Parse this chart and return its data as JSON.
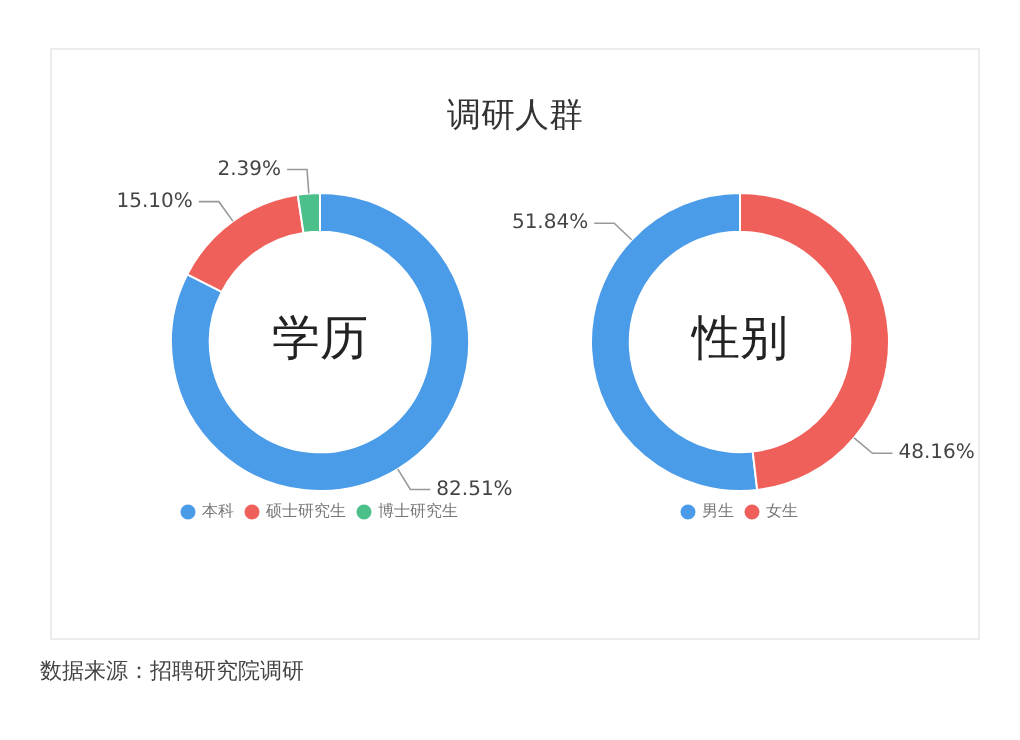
{
  "chart_data": [
    {
      "type": "donut",
      "title": "调研人群",
      "categories": [
        "本科",
        "硕士研究生",
        "博士研究生"
      ],
      "values": [
        82.51,
        15.1,
        2.39
      ],
      "colors": [
        "#4a9be8",
        "#f0605a",
        "#4cc08a"
      ],
      "value_labels": [
        "82.51%",
        "15.10%",
        "2.39%"
      ],
      "annotations": [
        "学历"
      ],
      "legend": "bottom"
    },
    {
      "type": "donut",
      "categories": [
        "男生",
        "女生"
      ],
      "values": [
        51.84,
        48.16
      ],
      "colors": [
        "#4a9be8",
        "#f0605a"
      ],
      "value_labels": [
        "51.84%",
        "48.16%"
      ],
      "annotations": [
        "性别",
        "数据来源：招聘研究院调研"
      ],
      "legend": "bottom"
    }
  ]
}
